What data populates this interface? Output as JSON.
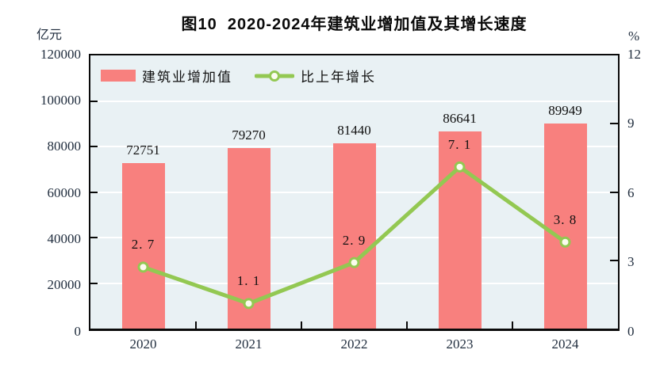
{
  "title": "图10  2020-2024年建筑业增加值及其增长速度",
  "axes": {
    "left_unit": "亿元",
    "right_unit": "%"
  },
  "legend": {
    "items": [
      {
        "label": "建筑业增加值",
        "swatch": "bar-swatch"
      },
      {
        "label": "比上年增长",
        "swatch": "line-marker-swatch"
      }
    ]
  },
  "colors": {
    "bar": "#f8807e",
    "line": "#93c852",
    "marker_fill": "#fbfcee",
    "plot_background": "#e9f1f4",
    "gridline": "#ffffff",
    "axis": "#0a0a0a",
    "tick_text": "#1e2b3c",
    "data_label": "#111111"
  },
  "chart_data": {
    "type": "bar",
    "subtype": "bar+line combo, dual axis",
    "title": "图10 2020-2024年建筑业增加值及其增长速度",
    "categories": [
      "2020",
      "2021",
      "2022",
      "2023",
      "2024"
    ],
    "series": [
      {
        "name": "建筑业增加值",
        "type": "bar",
        "axis": "left",
        "values": [
          72751,
          79270,
          81440,
          86641,
          89949
        ]
      },
      {
        "name": "比上年增长",
        "type": "line",
        "axis": "right",
        "values": [
          2.7,
          1.1,
          2.9,
          7.1,
          3.8
        ]
      }
    ],
    "left_axis": {
      "label": "亿元",
      "min": 0,
      "max": 120000,
      "step": 20000,
      "ticks": [
        0,
        20000,
        40000,
        60000,
        80000,
        100000,
        120000
      ]
    },
    "right_axis": {
      "label": "%",
      "min": 0,
      "max": 12,
      "step": 3,
      "ticks": [
        0,
        3,
        6,
        9,
        12
      ]
    },
    "grid": true,
    "data_labels": true,
    "legend_position": "inside top-left"
  }
}
